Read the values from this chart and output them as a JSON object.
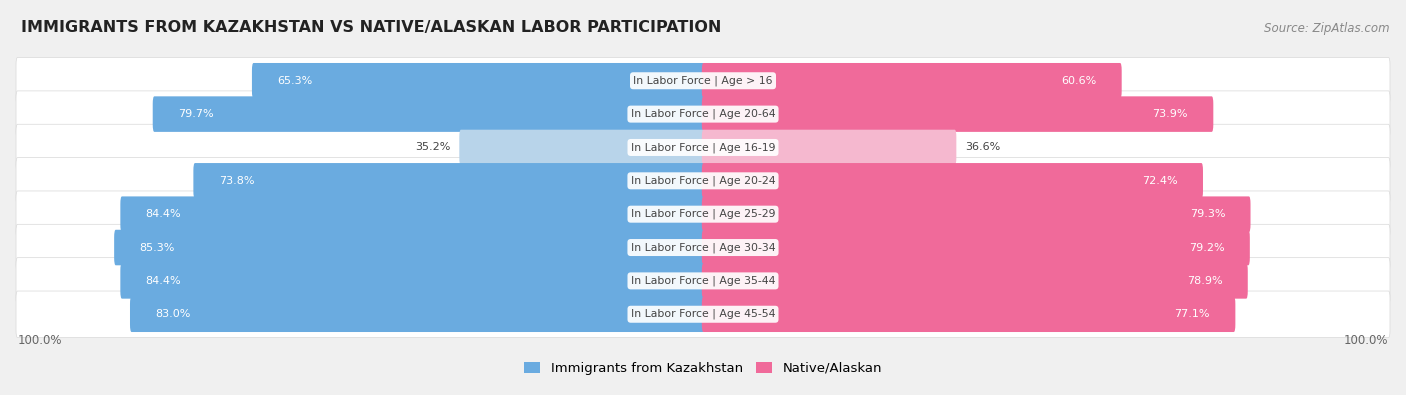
{
  "title": "IMMIGRANTS FROM KAZAKHSTAN VS NATIVE/ALASKAN LABOR PARTICIPATION",
  "source": "Source: ZipAtlas.com",
  "categories": [
    "In Labor Force | Age > 16",
    "In Labor Force | Age 20-64",
    "In Labor Force | Age 16-19",
    "In Labor Force | Age 20-24",
    "In Labor Force | Age 25-29",
    "In Labor Force | Age 30-34",
    "In Labor Force | Age 35-44",
    "In Labor Force | Age 45-54"
  ],
  "kazakhstan_values": [
    65.3,
    79.7,
    35.2,
    73.8,
    84.4,
    85.3,
    84.4,
    83.0
  ],
  "native_values": [
    60.6,
    73.9,
    36.6,
    72.4,
    79.3,
    79.2,
    78.9,
    77.1
  ],
  "kazakhstan_color_strong": "#6aabe0",
  "kazakhstan_color_light": "#b8d4ea",
  "native_color_strong": "#f06a9a",
  "native_color_light": "#f5b8cf",
  "label_color_white": "#ffffff",
  "label_color_dark": "#444444",
  "center_label_color": "#444444",
  "background_color": "#f0f0f0",
  "row_bg_color": "#ffffff",
  "row_border_color": "#d8d8d8",
  "legend_kazakhstan": "Immigrants from Kazakhstan",
  "legend_native": "Native/Alaskan",
  "axis_label_color": "#666666",
  "title_color": "#222222",
  "source_color": "#888888"
}
